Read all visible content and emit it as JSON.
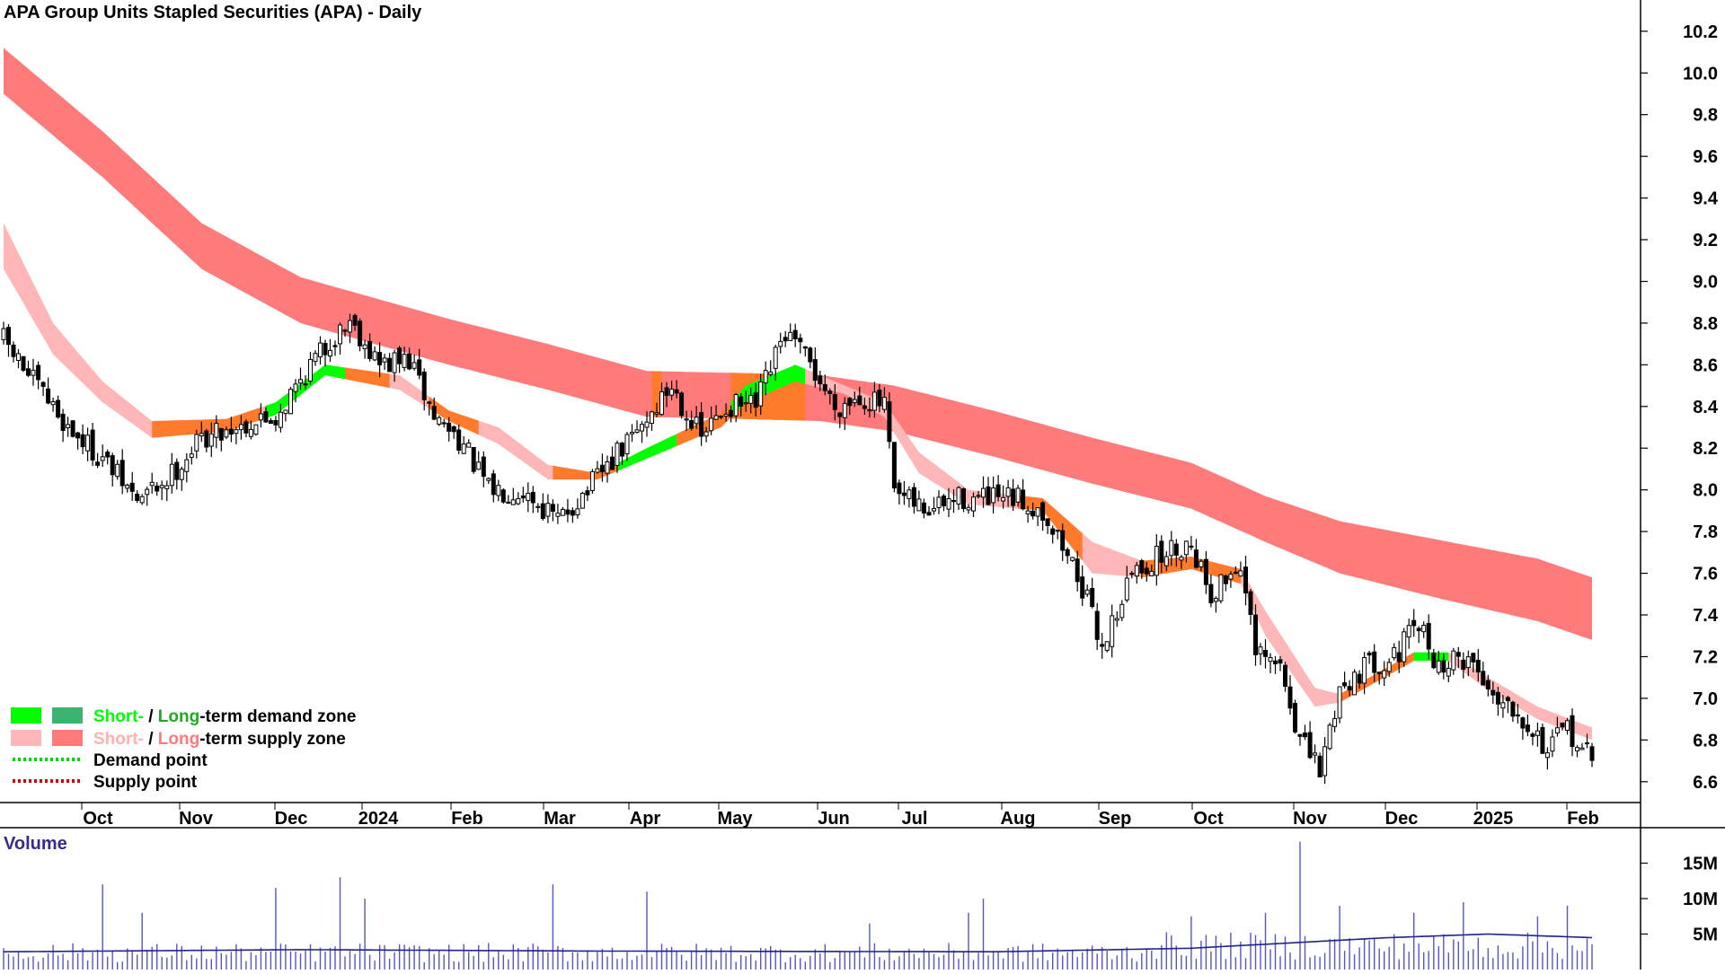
{
  "chart_data": [
    {
      "type": "candlestick",
      "title": "APA Group Units Stapled Securities (APA) - Daily",
      "ylim": [
        6.5,
        10.35
      ],
      "y_ticks": [
        "10.2",
        "10.0",
        "9.8",
        "9.6",
        "9.4",
        "9.2",
        "9.0",
        "8.8",
        "8.6",
        "8.4",
        "8.2",
        "8.0",
        "7.8",
        "7.6",
        "7.4",
        "7.2",
        "7.0",
        "6.8",
        "6.6"
      ],
      "x_ticks": [
        "Oct",
        "Nov",
        "Dec",
        "2024",
        "Feb",
        "Mar",
        "Apr",
        "May",
        "Jun",
        "Jul",
        "Aug",
        "Sep",
        "Oct",
        "Nov",
        "Dec",
        "2025",
        "Feb"
      ],
      "price_anchors": [
        [
          0,
          8.72
        ],
        [
          5,
          8.55
        ],
        [
          13,
          8.3
        ],
        [
          20,
          8.15
        ],
        [
          27,
          7.95
        ],
        [
          33,
          8.05
        ],
        [
          40,
          8.25
        ],
        [
          46,
          8.3
        ],
        [
          55,
          8.35
        ],
        [
          62,
          8.6
        ],
        [
          70,
          8.82
        ],
        [
          76,
          8.6
        ],
        [
          82,
          8.62
        ],
        [
          87,
          8.35
        ],
        [
          92,
          8.25
        ],
        [
          98,
          8.0
        ],
        [
          105,
          8.0
        ],
        [
          112,
          7.85
        ],
        [
          118,
          8.0
        ],
        [
          127,
          8.25
        ],
        [
          135,
          8.5
        ],
        [
          141,
          8.25
        ],
        [
          146,
          8.4
        ],
        [
          152,
          8.4
        ],
        [
          158,
          8.75
        ],
        [
          163,
          8.6
        ],
        [
          168,
          8.4
        ],
        [
          173,
          8.45
        ],
        [
          178,
          8.4
        ],
        [
          180,
          7.97
        ],
        [
          187,
          7.9
        ],
        [
          193,
          7.96
        ],
        [
          200,
          7.95
        ],
        [
          205,
          7.95
        ],
        [
          210,
          7.9
        ],
        [
          217,
          7.6
        ],
        [
          222,
          7.25
        ],
        [
          228,
          7.6
        ],
        [
          235,
          7.7
        ],
        [
          240,
          7.75
        ],
        [
          244,
          7.5
        ],
        [
          250,
          7.65
        ],
        [
          253,
          7.2
        ],
        [
          258,
          7.15
        ],
        [
          262,
          6.8
        ],
        [
          266,
          6.65
        ],
        [
          270,
          7.05
        ],
        [
          275,
          7.15
        ],
        [
          281,
          7.2
        ],
        [
          286,
          7.35
        ],
        [
          290,
          7.15
        ],
        [
          296,
          7.2
        ],
        [
          300,
          7.05
        ],
        [
          306,
          6.95
        ],
        [
          312,
          6.75
        ],
        [
          316,
          6.85
        ],
        [
          321,
          6.7
        ]
      ],
      "long_term_supply_zone_anchors": [
        [
          0,
          10.12,
          9.9
        ],
        [
          20,
          9.72,
          9.5
        ],
        [
          40,
          9.28,
          9.06
        ],
        [
          60,
          9.02,
          8.8
        ],
        [
          90,
          8.82,
          8.6
        ],
        [
          110,
          8.7,
          8.48
        ],
        [
          130,
          8.57,
          8.35
        ],
        [
          150,
          8.56,
          8.34
        ],
        [
          165,
          8.55,
          8.33
        ],
        [
          180,
          8.5,
          8.28
        ],
        [
          200,
          8.38,
          8.16
        ],
        [
          220,
          8.25,
          8.03
        ],
        [
          240,
          8.13,
          7.91
        ],
        [
          255,
          7.97,
          7.75
        ],
        [
          270,
          7.85,
          7.6
        ],
        [
          290,
          7.76,
          7.48
        ],
        [
          310,
          7.67,
          7.37
        ],
        [
          321,
          7.58,
          7.28
        ]
      ],
      "short_term_supply_zone_anchors": [
        [
          0,
          9.28,
          9.06
        ],
        [
          10,
          8.8,
          8.65
        ],
        [
          20,
          8.52,
          8.42
        ],
        [
          30,
          8.33,
          8.25
        ],
        [
          45,
          8.34,
          8.28
        ],
        [
          55,
          8.42,
          8.36
        ],
        [
          65,
          8.6,
          8.55
        ],
        [
          80,
          8.55,
          8.48
        ],
        [
          90,
          8.38,
          8.33
        ],
        [
          100,
          8.3,
          8.22
        ],
        [
          110,
          8.12,
          8.05
        ],
        [
          120,
          8.08,
          8.05
        ],
        [
          130,
          8.2,
          8.15
        ],
        [
          145,
          8.37,
          8.3
        ],
        [
          150,
          8.5,
          8.42
        ],
        [
          160,
          8.6,
          8.52
        ],
        [
          170,
          8.5,
          8.46
        ],
        [
          178,
          8.42,
          8.35
        ],
        [
          185,
          8.18,
          8.08
        ],
        [
          195,
          8.0,
          7.93
        ],
        [
          210,
          7.96,
          7.9
        ],
        [
          220,
          7.75,
          7.6
        ],
        [
          230,
          7.66,
          7.58
        ],
        [
          240,
          7.68,
          7.62
        ],
        [
          250,
          7.62,
          7.55
        ],
        [
          255,
          7.42,
          7.3
        ],
        [
          265,
          7.05,
          6.96
        ],
        [
          270,
          7.02,
          6.98
        ],
        [
          285,
          7.22,
          7.18
        ],
        [
          292,
          7.22,
          7.18
        ],
        [
          300,
          7.1,
          7.04
        ],
        [
          310,
          6.96,
          6.9
        ],
        [
          321,
          6.86,
          6.8
        ]
      ],
      "long_term_zone_color_segments": [
        {
          "from": 131,
          "to": 133,
          "color": "#ff7a2a"
        },
        {
          "from": 147,
          "to": 162,
          "color": "#ff7a2a"
        }
      ],
      "short_term_zone_color_segments": [
        {
          "from": 30,
          "to": 52,
          "color": "#ff7a2a"
        },
        {
          "from": 53,
          "to": 69,
          "color": "#00ff00"
        },
        {
          "from": 69,
          "to": 78,
          "color": "#ff7a2a"
        },
        {
          "from": 86,
          "to": 96,
          "color": "#ff7a2a"
        },
        {
          "from": 111,
          "to": 124,
          "color": "#ff7a2a"
        },
        {
          "from": 124,
          "to": 136,
          "color": "#00ff00"
        },
        {
          "from": 136,
          "to": 148,
          "color": "#ff7a2a"
        },
        {
          "from": 147,
          "to": 162,
          "color": "#00ff00"
        },
        {
          "from": 205,
          "to": 218,
          "color": "#ff7a2a"
        },
        {
          "from": 230,
          "to": 250,
          "color": "#ff7a2a"
        },
        {
          "from": 270,
          "to": 285,
          "color": "#ff7a2a"
        },
        {
          "from": 285,
          "to": 292,
          "color": "#00ff00"
        }
      ],
      "legend": [
        {
          "short_label": "Short-",
          "separator": " / ",
          "long_label": "Long",
          "suffix": "-term demand zone",
          "short_color": "#00ff00",
          "long_color": "#3cb371",
          "text_color": "#22aa22"
        },
        {
          "short_label": "Short-",
          "separator": " / ",
          "long_label": "Long",
          "suffix": "-term supply zone",
          "short_color": "#ffb6b6",
          "long_color": "#ff7b7b",
          "text_color": "#ffb0b0"
        },
        {
          "label": "Demand point",
          "dot_color": "#00dd00"
        },
        {
          "label": "Supply point",
          "dot_color": "#dd0000"
        }
      ],
      "colors": {
        "candle_up": "#ffffff",
        "candle_down": "#000000",
        "long_supply": "#ff7b7b",
        "short_supply": "#ffb6b6",
        "demand_short": "#00ff00",
        "orange_zone": "#ff7a2a"
      }
    },
    {
      "type": "bar",
      "title": "Volume",
      "ylim": [
        0,
        20000000
      ],
      "y_ticks": [
        "15M",
        "10M",
        "5M"
      ],
      "base_volume": 2500000,
      "volume_spikes": [
        [
          20,
          12000000
        ],
        [
          28,
          8000000
        ],
        [
          55,
          11500000
        ],
        [
          68,
          13000000
        ],
        [
          73,
          10000000
        ],
        [
          111,
          12000000
        ],
        [
          130,
          11000000
        ],
        [
          175,
          6500000
        ],
        [
          195,
          8000000
        ],
        [
          198,
          10000000
        ],
        [
          240,
          7500000
        ],
        [
          255,
          8000000
        ],
        [
          262,
          18000000
        ],
        [
          270,
          9000000
        ],
        [
          285,
          8000000
        ],
        [
          295,
          9500000
        ],
        [
          310,
          7500000
        ],
        [
          316,
          9000000
        ]
      ],
      "moving_average_anchors": [
        [
          0,
          2500000
        ],
        [
          60,
          2800000
        ],
        [
          120,
          2600000
        ],
        [
          200,
          2500000
        ],
        [
          240,
          3000000
        ],
        [
          280,
          4500000
        ],
        [
          300,
          5000000
        ],
        [
          321,
          4500000
        ]
      ],
      "colors": {
        "bars": "#5555cc",
        "average": "#22228a"
      }
    }
  ]
}
